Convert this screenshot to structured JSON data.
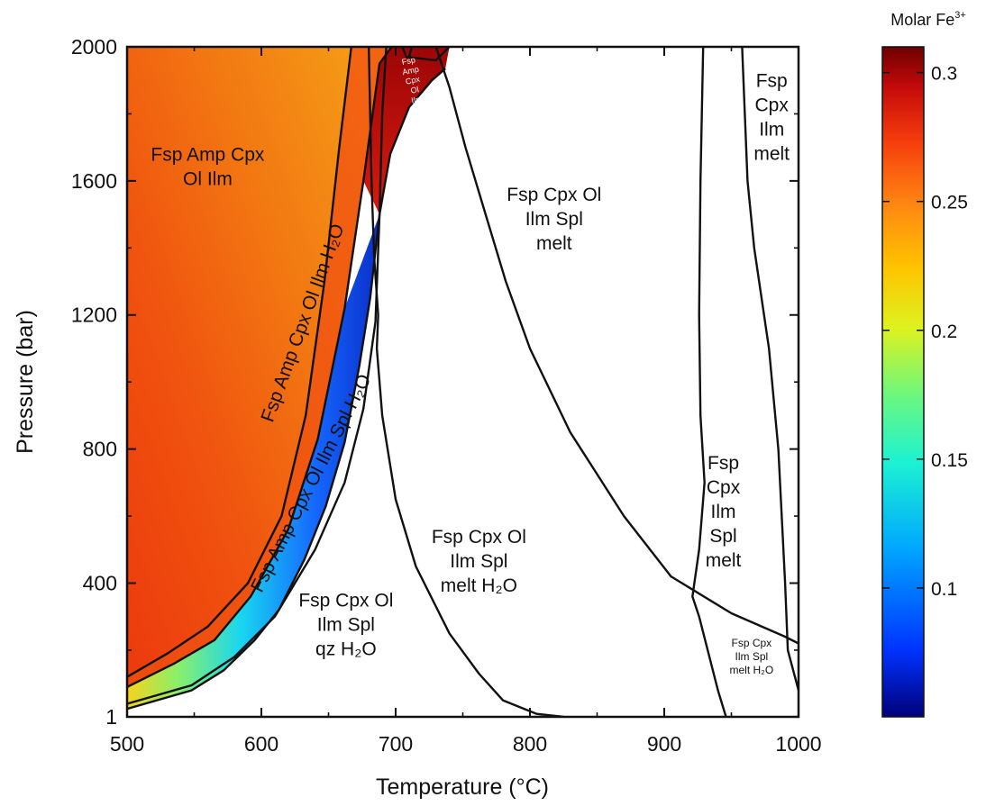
{
  "chart_data": {
    "type": "heatmap",
    "title": "",
    "xlabel": "Temperature (°C)",
    "ylabel": "Pressure (bar)",
    "xlim": [
      500,
      1000
    ],
    "ylim": [
      1,
      2000
    ],
    "x_ticks": [
      500,
      600,
      700,
      800,
      900,
      1000
    ],
    "y_ticks": [
      1,
      400,
      800,
      1200,
      1600,
      2000
    ],
    "x_tick_labels": [
      "500",
      "600",
      "700",
      "800",
      "900",
      "1000"
    ],
    "y_tick_labels": [
      "1",
      "400",
      "800",
      "1200",
      "1600",
      "2000"
    ],
    "colorbar": {
      "title": "Molar Fe",
      "title_superscript": "3+",
      "range": [
        0.05,
        0.31
      ],
      "ticks": [
        0.1,
        0.15,
        0.2,
        0.25,
        0.3
      ],
      "tick_labels": [
        "0.1",
        "0.15",
        "0.2",
        "0.25",
        "0.3"
      ],
      "colors": [
        "#00007a",
        "#0033ff",
        "#00a6ff",
        "#1cf2d2",
        "#6cf77d",
        "#ddf21f",
        "#ffc400",
        "#ff8a12",
        "#f53c0d",
        "#c40a0a",
        "#6e0000"
      ]
    },
    "field_labels": [
      {
        "lines": [
          "Fsp Amp Cpx",
          "Ol Ilm"
        ],
        "T": 560,
        "P": 1660,
        "size": "normal"
      },
      {
        "lines": [
          "Fsp Cpx Ol",
          "Ilm Spl",
          "melt"
        ],
        "T": 818,
        "P": 1540,
        "size": "normal"
      },
      {
        "lines": [
          "Fsp",
          "Cpx",
          "Ilm",
          "melt"
        ],
        "T": 980,
        "P": 1880,
        "size": "normal"
      },
      {
        "lines": [
          "Fsp",
          "Cpx",
          "Ilm",
          "Spl",
          "melt"
        ],
        "T": 944,
        "P": 740,
        "size": "normal"
      },
      {
        "lines": [
          "Fsp Cpx Ol",
          "Ilm Spl",
          "melt H₂O"
        ],
        "T": 762,
        "P": 520,
        "size": "normal"
      },
      {
        "lines": [
          "Fsp Cpx Ol",
          "Ilm Spl",
          "qz H₂O"
        ],
        "T": 663,
        "P": 330,
        "size": "normal"
      },
      {
        "lines": [
          "Fsp Cpx",
          "Ilm Spl",
          "melt H₂O"
        ],
        "T": 965,
        "P": 210,
        "size": "small"
      }
    ],
    "rotated_labels": [
      {
        "text": "Fsp Amp Cpx Ol Ilm H₂O",
        "T": 635,
        "P": 1170,
        "angle": -70
      },
      {
        "text": "Fsp Amp Cpx Ol Ilm Spl H₂O",
        "T": 641,
        "P": 690,
        "angle": -63
      }
    ],
    "tiny_label": {
      "lines": [
        "Fsp",
        "Amp",
        "Cpx",
        "Ol",
        "Ilm",
        "Spl",
        "melt",
        "H₂O"
      ],
      "T": 710,
      "P": 1950
    },
    "boundaries": [
      {
        "name": "upper-amp",
        "points": [
          [
            500,
            120
          ],
          [
            530,
            190
          ],
          [
            560,
            270
          ],
          [
            590,
            400
          ],
          [
            615,
            600
          ],
          [
            633,
            900
          ],
          [
            647,
            1300
          ],
          [
            658,
            1700
          ],
          [
            667,
            2000
          ]
        ]
      },
      {
        "name": "lower-amp",
        "points": [
          [
            500,
            90
          ],
          [
            535,
            160
          ],
          [
            565,
            230
          ],
          [
            592,
            360
          ],
          [
            620,
            560
          ],
          [
            642,
            830
          ],
          [
            662,
            1220
          ],
          [
            676,
            1600
          ],
          [
            688,
            1950
          ],
          [
            697,
            2000
          ]
        ]
      },
      {
        "name": "solidus",
        "points": [
          [
            500,
            25
          ],
          [
            548,
            80
          ],
          [
            572,
            140
          ],
          [
            595,
            230
          ],
          [
            613,
            320
          ],
          [
            632,
            470
          ],
          [
            648,
            630
          ],
          [
            662,
            820
          ],
          [
            673,
            1050
          ],
          [
            681,
            1250
          ],
          [
            688,
            1500
          ],
          [
            696,
            1680
          ],
          [
            710,
            1820
          ],
          [
            727,
            1900
          ],
          [
            737,
            1935
          ]
        ]
      },
      {
        "name": "ilm-out",
        "points": [
          [
            500,
            40
          ],
          [
            548,
            95
          ],
          [
            580,
            180
          ],
          [
            610,
            300
          ],
          [
            640,
            500
          ],
          [
            662,
            700
          ],
          [
            676,
            920
          ],
          [
            685,
            1180
          ],
          [
            688,
            1500
          ],
          [
            690,
            1800
          ],
          [
            693,
            2000
          ]
        ]
      },
      {
        "name": "fluid-sat",
        "points": [
          [
            680,
            2000
          ],
          [
            682,
            1600
          ],
          [
            684,
            1370
          ],
          [
            687,
            1200
          ],
          [
            686,
            1100
          ],
          [
            690,
            900
          ],
          [
            700,
            650
          ],
          [
            715,
            450
          ],
          [
            740,
            250
          ],
          [
            762,
            130
          ],
          [
            780,
            50
          ],
          [
            805,
            10
          ],
          [
            825,
            1
          ]
        ]
      },
      {
        "name": "h2o-out",
        "points": [
          [
            730,
            2000
          ],
          [
            740,
            1880
          ],
          [
            752,
            1700
          ],
          [
            767,
            1500
          ],
          [
            782,
            1300
          ],
          [
            800,
            1100
          ],
          [
            830,
            850
          ],
          [
            870,
            600
          ],
          [
            905,
            420
          ],
          [
            950,
            310
          ],
          [
            990,
            240
          ],
          [
            1000,
            220
          ]
        ]
      },
      {
        "name": "spl-in",
        "points": [
          [
            929,
            2000
          ],
          [
            927,
            1600
          ],
          [
            926,
            1200
          ],
          [
            927,
            900
          ],
          [
            930,
            700
          ],
          [
            926,
            500
          ],
          [
            921,
            360
          ],
          [
            926,
            300
          ],
          [
            940,
            80
          ],
          [
            946,
            1
          ]
        ]
      },
      {
        "name": "spl-out",
        "points": [
          [
            958,
            2000
          ],
          [
            960,
            1800
          ],
          [
            962,
            1600
          ],
          [
            967,
            1400
          ],
          [
            978,
            1100
          ],
          [
            985,
            800
          ],
          [
            990,
            400
          ],
          [
            992,
            200
          ],
          [
            1000,
            80
          ]
        ]
      },
      {
        "name": "top-cap-1",
        "points": [
          [
            705,
            2000
          ],
          [
            708,
            1970
          ],
          [
            730,
            1960
          ],
          [
            740,
            2000
          ]
        ]
      },
      {
        "name": "top-cap-2",
        "points": [
          [
            710,
            1970
          ],
          [
            712,
            2000
          ]
        ]
      }
    ],
    "regions": [
      {
        "name": "fsp-amp-cpx-ol-ilm",
        "value": 0.245
      },
      {
        "name": "fsp-amp-cpx-ol-ilm-h2o",
        "value": 0.265
      },
      {
        "name": "fsp-amp-cpx-ol-ilm-spl-h2o",
        "value": 0.13
      },
      {
        "name": "fsp-amp-cpx-ol-ilm-spl-melt-h2o",
        "value": 0.3
      }
    ],
    "grid": false,
    "legend": "colorbar-right"
  }
}
